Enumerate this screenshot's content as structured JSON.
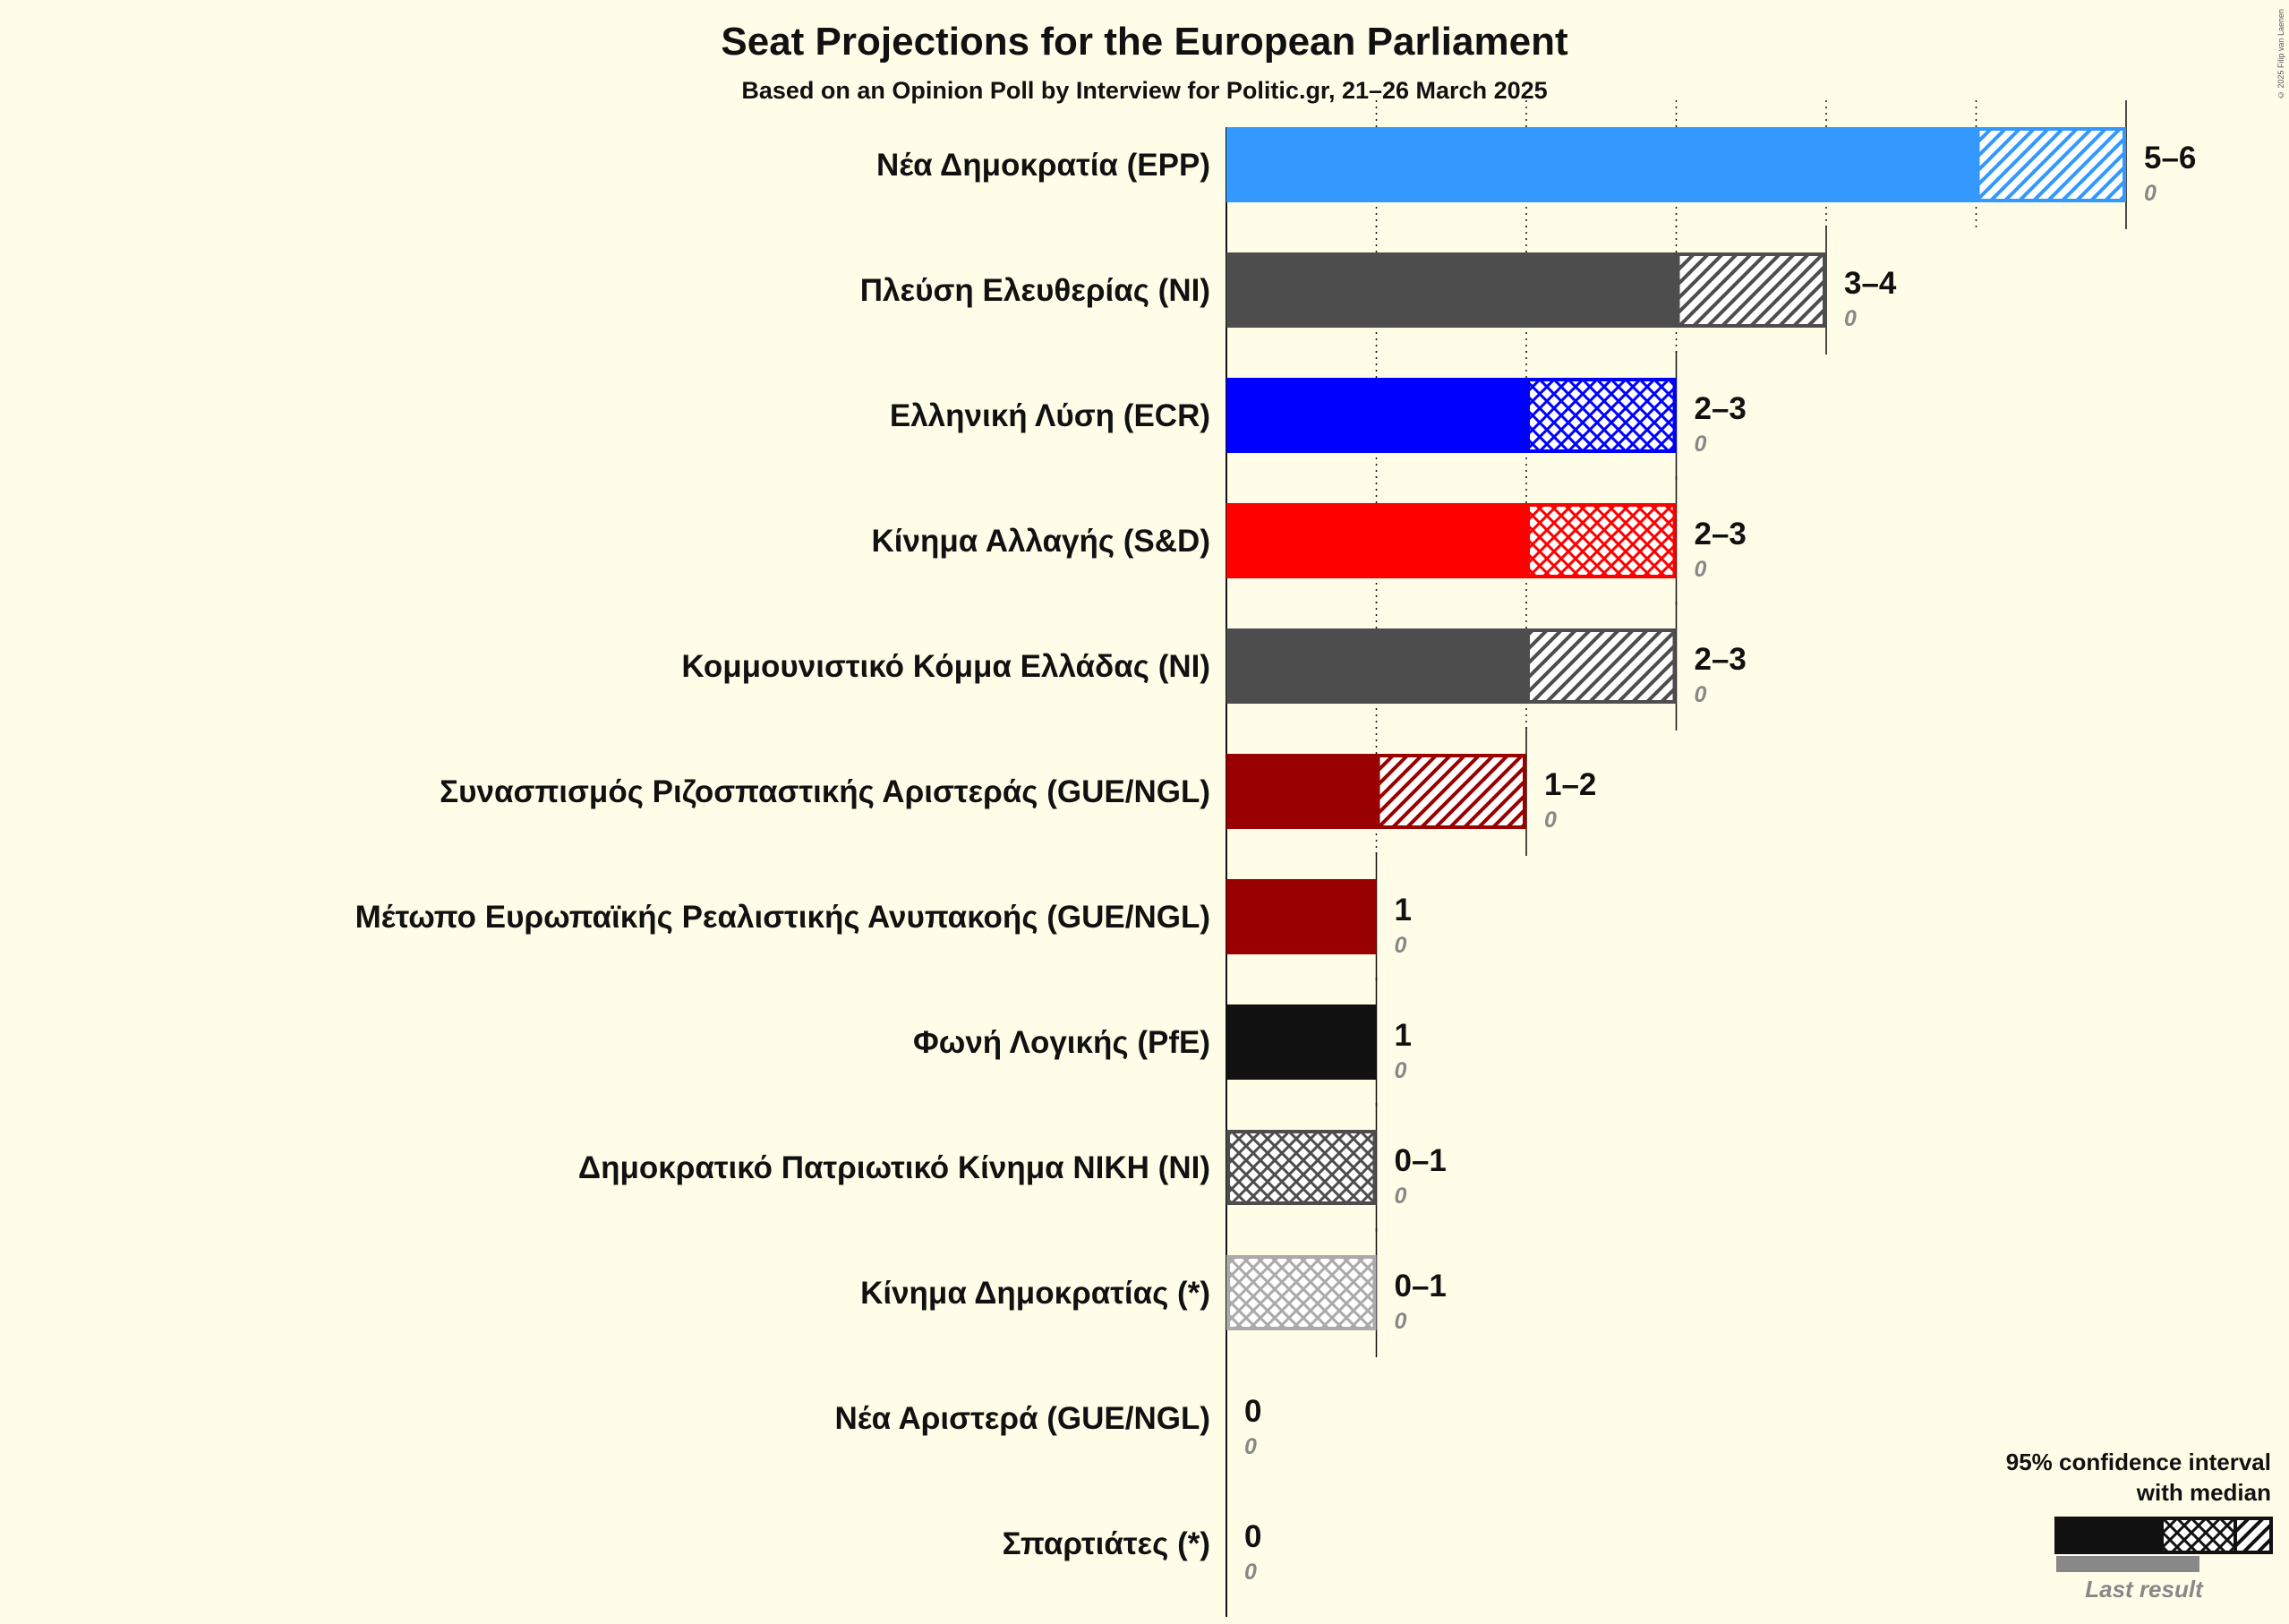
{
  "header": {
    "title": "Seat Projections for the European Parliament",
    "subtitle": "Based on an Opinion Poll by Interview for Politic.gr, 21–26 March 2025",
    "copyright": "© 2025 Filip van Laenen"
  },
  "chart_data": {
    "type": "bar",
    "orientation": "horizontal",
    "title": "Seat Projections for the European Parliament",
    "subtitle": "Based on an Opinion Poll by Interview for Politic.gr, 21–26 March 2025",
    "xlim": [
      0,
      6
    ],
    "categories": [
      "Νέα Δημοκρατία (EPP)",
      "Πλεύση Ελευθερίας (NI)",
      "Ελληνική Λύση (ECR)",
      "Κίνημα Αλλαγής (S&D)",
      "Κομμουνιστικό Κόμμα Ελλάδας (NI)",
      "Συνασπισμός Ριζοσπαστικής Αριστεράς (GUE/NGL)",
      "Μέτωπο Ευρωπαϊκής Ρεαλιστικής Ανυπακοής (GUE/NGL)",
      "Φωνή Λογικής (PfE)",
      "Δημοκρατικό Πατριωτικό Κίνημα ΝΙΚΗ (NI)",
      "Κίνημα Δημοκρατίας (*)",
      "Νέα Αριστερά (GUE/NGL)",
      "Σπαρτιάτες (*)"
    ],
    "parties": [
      {
        "name": "Νέα Δημοκρατία (EPP)",
        "low": 5,
        "median": 5,
        "high": 6,
        "range_label": "5–6",
        "last_result": 0,
        "last_label": "0",
        "color": "#3399FF"
      },
      {
        "name": "Πλεύση Ελευθερίας (NI)",
        "low": 3,
        "median": 3,
        "high": 4,
        "range_label": "3–4",
        "last_result": 0,
        "last_label": "0",
        "color": "#4D4D4D"
      },
      {
        "name": "Ελληνική Λύση (ECR)",
        "low": 2,
        "median": 3,
        "high": 3,
        "range_label": "2–3",
        "last_result": 0,
        "last_label": "0",
        "color": "#0000FF"
      },
      {
        "name": "Κίνημα Αλλαγής (S&D)",
        "low": 2,
        "median": 3,
        "high": 3,
        "range_label": "2–3",
        "last_result": 0,
        "last_label": "0",
        "color": "#FF0000"
      },
      {
        "name": "Κομμουνιστικό Κόμμα Ελλάδας (NI)",
        "low": 2,
        "median": 2,
        "high": 3,
        "range_label": "2–3",
        "last_result": 0,
        "last_label": "0",
        "color": "#4D4D4D"
      },
      {
        "name": "Συνασπισμός Ριζοσπαστικής Αριστεράς (GUE/NGL)",
        "low": 1,
        "median": 1,
        "high": 2,
        "range_label": "1–2",
        "last_result": 0,
        "last_label": "0",
        "color": "#990000"
      },
      {
        "name": "Μέτωπο Ευρωπαϊκής Ρεαλιστικής Ανυπακοής (GUE/NGL)",
        "low": 1,
        "median": 1,
        "high": 1,
        "range_label": "1",
        "last_result": 0,
        "last_label": "0",
        "color": "#990000"
      },
      {
        "name": "Φωνή Λογικής (PfE)",
        "low": 1,
        "median": 1,
        "high": 1,
        "range_label": "1",
        "last_result": 0,
        "last_label": "0",
        "color": "#111111"
      },
      {
        "name": "Δημοκρατικό Πατριωτικό Κίνημα ΝΙΚΗ (NI)",
        "low": 0,
        "median": 1,
        "high": 1,
        "range_label": "0–1",
        "last_result": 0,
        "last_label": "0",
        "color": "#4D4D4D"
      },
      {
        "name": "Κίνημα Δημοκρατίας (*)",
        "low": 0,
        "median": 1,
        "high": 1,
        "range_label": "0–1",
        "last_result": 0,
        "last_label": "0",
        "color": "#AAAAAA"
      },
      {
        "name": "Νέα Αριστερά (GUE/NGL)",
        "low": 0,
        "median": 0,
        "high": 0,
        "range_label": "0",
        "last_result": 0,
        "last_label": "0",
        "color": "#990000"
      },
      {
        "name": "Σπαρτιάτες (*)",
        "low": 0,
        "median": 0,
        "high": 0,
        "range_label": "0",
        "last_result": 0,
        "last_label": "0",
        "color": "#4D4D4D"
      }
    ],
    "gridlines": "dotted at integer seat counts",
    "legend": {
      "position": "bottom-right",
      "line1": "95% confidence interval",
      "line2": "with median",
      "last_result_label": "Last result"
    }
  }
}
